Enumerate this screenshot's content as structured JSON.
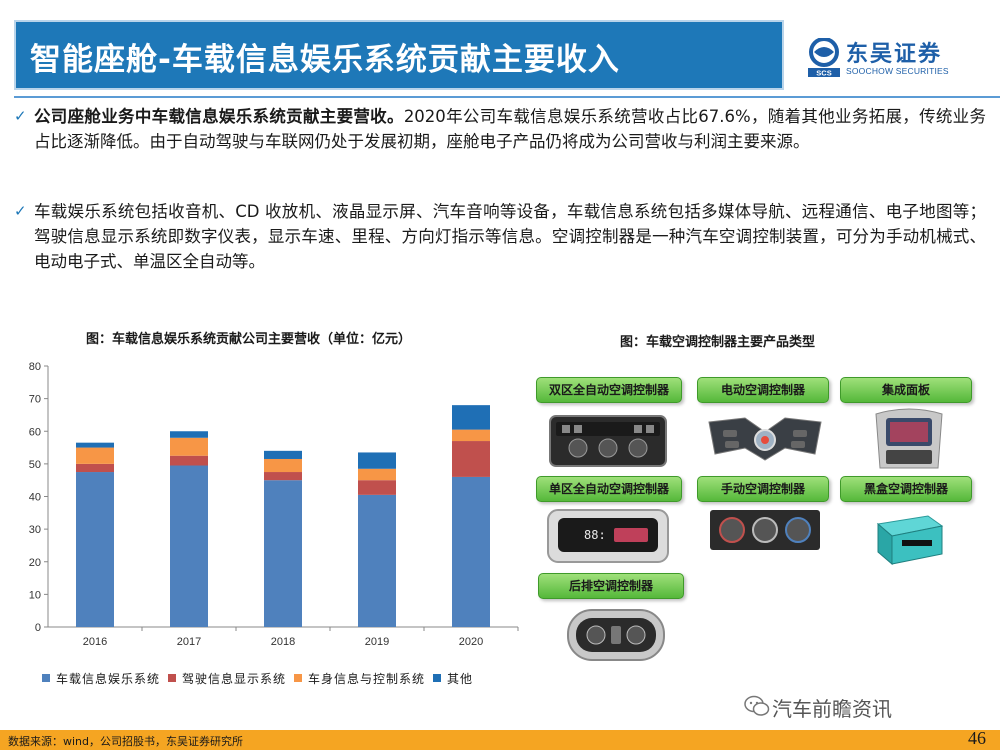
{
  "header": {
    "title": "智能座舱-车载信息娱乐系统贡献主要收入",
    "logo_cn": "东吴证券",
    "logo_en": "SOOCHOW SECURITIES",
    "logo_mark": "SCS"
  },
  "bullets": [
    {
      "bold": "公司座舱业务中车载信息娱乐系统贡献主要营收。",
      "text": "2020年公司车载信息娱乐系统营收占比67.6%，随着其他业务拓展，传统业务占比逐渐降低。由于自动驾驶与车联网仍处于发展初期，座舱电子产品仍将成为公司营收与利润主要来源。"
    },
    {
      "bold": "",
      "text": "车载娱乐系统包括收音机、CD 收放机、液晶显示屏、汽车音响等设备，车载信息系统包括多媒体导航、远程通信、电子地图等；驾驶信息显示系统即数字仪表，显示车速、里程、方向灯指示等信息。空调控制器是一种汽车空调控制装置，可分为手动机械式、电动电子式、单温区全自动等。"
    }
  ],
  "chart_title": "图：车载信息娱乐系统贡献公司主要营收（单位：亿元）",
  "chart_data": {
    "type": "bar",
    "stacked": true,
    "title": "图：车载信息娱乐系统贡献公司主要营收（单位：亿元）",
    "categories": [
      "2016",
      "2017",
      "2018",
      "2019",
      "2020"
    ],
    "series": [
      {
        "name": "车载信息娱乐系统",
        "color": "#4f81bd",
        "values": [
          47.5,
          49.5,
          45.0,
          40.5,
          46.0
        ]
      },
      {
        "name": "驾驶信息显示系统",
        "color": "#c0504d",
        "values": [
          2.5,
          3.0,
          2.5,
          4.5,
          11.0
        ]
      },
      {
        "name": "车身信息与控制系统",
        "color": "#f79646",
        "values": [
          5.0,
          5.5,
          4.0,
          3.5,
          3.5
        ]
      },
      {
        "name": "其他",
        "color": "#1f6fb5",
        "values": [
          1.5,
          2.0,
          2.5,
          5.0,
          7.5
        ]
      }
    ],
    "yticks": [
      "0",
      "10",
      "20",
      "30",
      "40",
      "50",
      "60",
      "70",
      "80"
    ],
    "ylim": [
      0,
      80
    ],
    "xlabel": "",
    "ylabel": "",
    "legend_position": "bottom"
  },
  "right_title": "图：车载空调控制器主要产品类型",
  "products": [
    "双区全自动空调控制器",
    "电动空调控制器",
    "集成面板",
    "单区全自动空调控制器",
    "手动空调控制器",
    "黑盒空调控制器",
    "后排空调控制器"
  ],
  "watermark": "汽车前瞻资讯",
  "footer": {
    "source": "数据来源：wind，公司招股书，东吴证券研究所",
    "page": "46"
  }
}
